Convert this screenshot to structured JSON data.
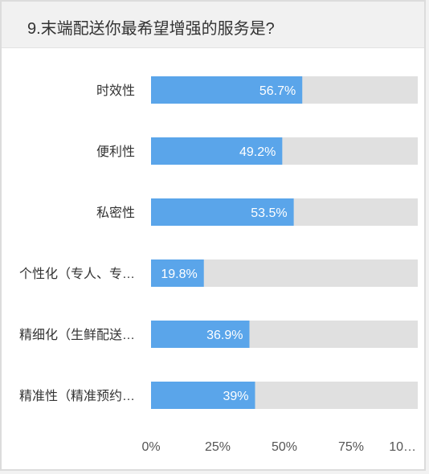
{
  "question": {
    "title": "9.末端配送你最希望增强的服务是?"
  },
  "chart_data": {
    "type": "bar",
    "orientation": "horizontal",
    "categories": [
      "时效性",
      "便利性",
      "私密性",
      "个性化（专人、专…",
      "精细化（生鲜配送…",
      "精准性（精准预约…"
    ],
    "values": [
      56.7,
      49.2,
      53.5,
      19.8,
      36.9,
      39
    ],
    "value_labels": [
      "56.7%",
      "49.2%",
      "53.5%",
      "19.8%",
      "36.9%",
      "39%"
    ],
    "x_ticks": [
      "0%",
      "25%",
      "50%",
      "75%",
      "10…"
    ],
    "xlim": [
      0,
      100
    ],
    "bar_color": "#5aa5ea",
    "track_color": "#e0e0e0",
    "grid": false
  }
}
